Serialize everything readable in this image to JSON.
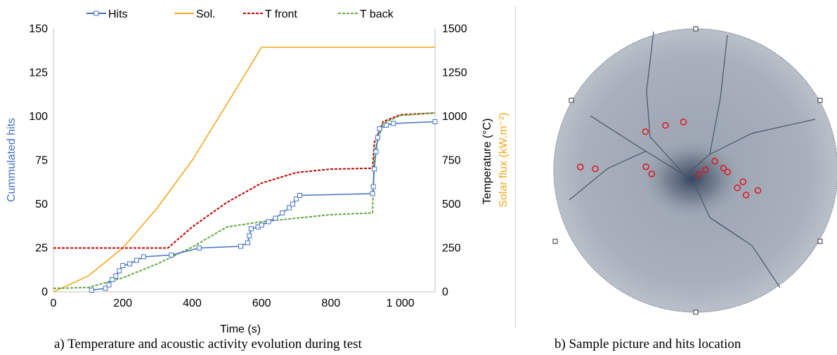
{
  "legend": {
    "hits": "Hits",
    "sol": "Sol.",
    "tfront": "T front",
    "tback": "T back"
  },
  "colors": {
    "hits": "#4472C4",
    "sol": "#F4A81E",
    "tfront": "#C00000",
    "tback": "#5DAA3C",
    "hit_location": "#E0141E",
    "ylabel_left": "#4472C4",
    "ylabel_right_solar": "#F4A81E"
  },
  "captions": {
    "a": "a) Temperature and acoustic activity evolution during test",
    "b": "b) Sample picture and hits location"
  },
  "chart_data": {
    "type": "line",
    "xlabel": "Time (s)",
    "ylabel_left": "Cummulated hits",
    "ylabel_right_1": "Temperature (°C)",
    "ylabel_right_2": "Solar flux (kW.m⁻²)",
    "xlim": [
      0,
      1100
    ],
    "ylim_left": [
      0,
      150
    ],
    "ylim_right": [
      0,
      1500
    ],
    "x_ticks": [
      0,
      200,
      400,
      600,
      800,
      1000
    ],
    "x_tick_labels": [
      "0",
      "200",
      "400",
      "600",
      "800",
      "1 000"
    ],
    "y_left_ticks": [
      0,
      25,
      50,
      75,
      100,
      125,
      150
    ],
    "y_left_tick_labels": [
      "0",
      "25",
      "50",
      "75",
      "100",
      "125",
      "150"
    ],
    "y_right_ticks": [
      0,
      250,
      500,
      750,
      1000,
      1250,
      1500
    ],
    "y_right_tick_labels": [
      "0",
      "250",
      "500",
      "750",
      "1000",
      "1250",
      "1500"
    ],
    "grid": false,
    "legend_position": "top",
    "series": [
      {
        "name": "Sol.",
        "axis": "right",
        "x": [
          0,
          100,
          200,
          300,
          400,
          500,
          600,
          1100
        ],
        "y": [
          0,
          90,
          250,
          480,
          750,
          1070,
          1395,
          1395
        ]
      },
      {
        "name": "T front",
        "axis": "right",
        "x": [
          0,
          330,
          400,
          500,
          600,
          700,
          800,
          920,
          925,
          950,
          1000,
          1100
        ],
        "y": [
          250,
          250,
          370,
          510,
          620,
          680,
          700,
          705,
          850,
          970,
          1010,
          1020
        ]
      },
      {
        "name": "T back",
        "axis": "right",
        "x": [
          0,
          100,
          200,
          300,
          400,
          500,
          600,
          700,
          800,
          920,
          925,
          950,
          1000,
          1100
        ],
        "y": [
          20,
          25,
          80,
          160,
          255,
          370,
          400,
          420,
          440,
          450,
          800,
          960,
          1005,
          1020
        ]
      },
      {
        "name": "Hits",
        "axis": "left",
        "x": [
          110,
          150,
          160,
          170,
          180,
          190,
          200,
          220,
          240,
          260,
          340,
          420,
          540,
          560,
          565,
          570,
          590,
          600,
          620,
          640,
          660,
          680,
          690,
          700,
          710,
          920,
          922,
          925,
          930,
          935,
          940,
          960,
          980,
          1100
        ],
        "y": [
          1,
          2,
          4,
          7,
          9,
          12,
          15,
          16,
          18,
          20,
          21,
          25,
          26,
          28,
          32,
          36,
          37,
          38,
          40,
          42,
          45,
          48,
          50,
          53,
          55,
          56,
          60,
          70,
          80,
          88,
          93,
          95,
          96,
          97
        ]
      }
    ]
  },
  "sample": {
    "hit_locations": [
      [
        60,
        507
      ],
      [
        89,
        513
      ],
      [
        187,
        390
      ],
      [
        188,
        506
      ],
      [
        199,
        530
      ],
      [
        226,
        369
      ],
      [
        261,
        358
      ],
      [
        291,
        532
      ],
      [
        304,
        516
      ],
      [
        322,
        488
      ],
      [
        339,
        511
      ],
      [
        347,
        524
      ],
      [
        366,
        576
      ],
      [
        377,
        556
      ],
      [
        383,
        600
      ],
      [
        406,
        585
      ]
    ]
  }
}
